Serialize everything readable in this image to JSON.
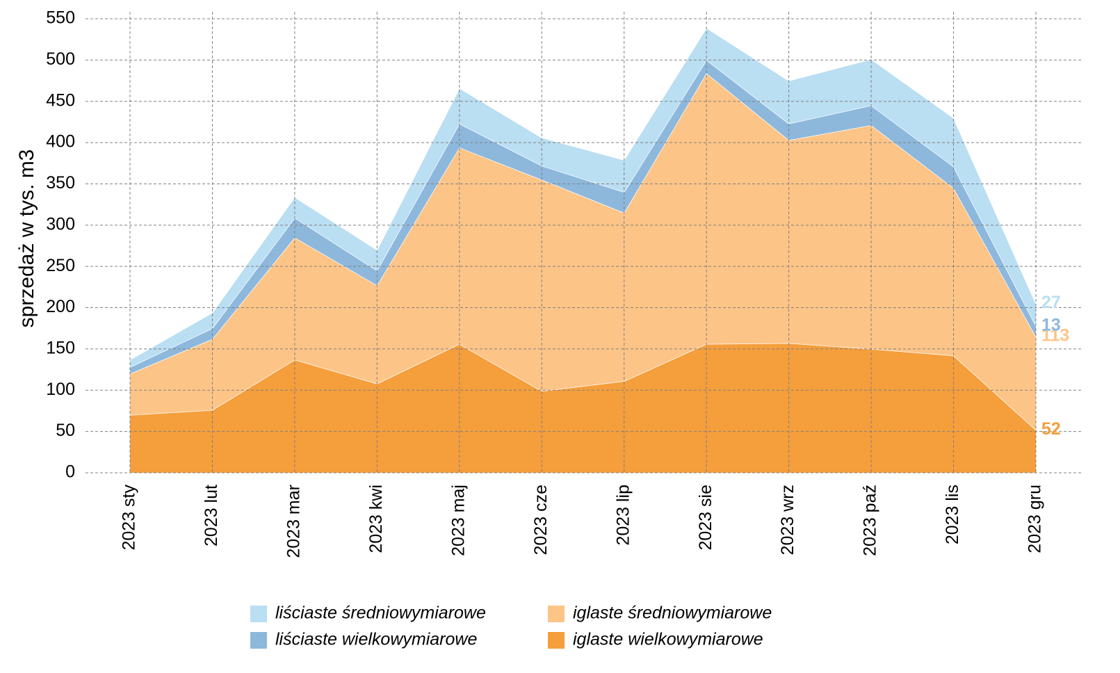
{
  "chart_data": {
    "type": "stacked-area",
    "y_label": "sprzedaż w tys. m3",
    "categories": [
      "2023 sty",
      "2023 lut",
      "2023 mar",
      "2023 kwi",
      "2023 maj",
      "2023 cze",
      "2023 lip",
      "2023 sie",
      "2023 wrz",
      "2023 paź",
      "2023 lis",
      "2023 gru"
    ],
    "series": [
      {
        "name": "iglaste wielkowymiarowe",
        "color": "#f49e3c",
        "values": [
          70,
          76,
          137,
          108,
          156,
          99,
          111,
          156,
          157,
          150,
          142,
          52
        ]
      },
      {
        "name": "iglaste średniowymiarowe",
        "color": "#fdc487",
        "values": [
          50,
          86,
          148,
          119,
          238,
          256,
          204,
          328,
          246,
          271,
          203,
          113
        ]
      },
      {
        "name": "liściaste wielkowymiarowe",
        "color": "#8db8dc",
        "values": [
          8,
          13,
          24,
          18,
          29,
          17,
          25,
          16,
          20,
          24,
          26,
          13
        ]
      },
      {
        "name": "liściaste średniowymiarowe",
        "color": "#badef2",
        "values": [
          9,
          19,
          25,
          25,
          43,
          34,
          39,
          39,
          52,
          56,
          59,
          27
        ]
      }
    ],
    "ylim": [
      0,
      550
    ],
    "yticks": [
      0,
      50,
      100,
      150,
      200,
      250,
      300,
      350,
      400,
      450,
      500,
      550
    ],
    "grid": true,
    "end_labels": true
  }
}
